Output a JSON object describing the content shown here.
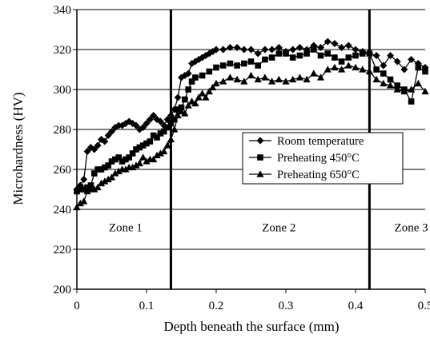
{
  "chart_data": {
    "type": "line",
    "xlabel": "Depth beneath the surface (mm)",
    "ylabel": "Microhardness (HV)",
    "xlim": [
      0,
      0.5
    ],
    "ylim": [
      200,
      340
    ],
    "x_ticks": [
      "0",
      "0.1",
      "0.2",
      "0.3",
      "0.4",
      "0.5"
    ],
    "y_ticks": [
      "200",
      "220",
      "240",
      "260",
      "280",
      "300",
      "320",
      "340"
    ],
    "grid": "horizontal",
    "legend_position": "center-right",
    "zone_boundaries": [
      0.135,
      0.42
    ],
    "zones": [
      {
        "label": "Zone 1",
        "x": 0.07,
        "y": 231
      },
      {
        "label": "Zone 2",
        "x": 0.29,
        "y": 231
      },
      {
        "label": "Zone 3",
        "x": 0.48,
        "y": 231
      }
    ],
    "series": [
      {
        "name": "Room temperature",
        "marker": "diamond",
        "points": [
          [
            0.0,
            250
          ],
          [
            0.005,
            252
          ],
          [
            0.01,
            255
          ],
          [
            0.015,
            269
          ],
          [
            0.02,
            271
          ],
          [
            0.025,
            270
          ],
          [
            0.03,
            272
          ],
          [
            0.035,
            275
          ],
          [
            0.04,
            274
          ],
          [
            0.045,
            277
          ],
          [
            0.05,
            279
          ],
          [
            0.055,
            281
          ],
          [
            0.06,
            282
          ],
          [
            0.065,
            282
          ],
          [
            0.07,
            283
          ],
          [
            0.075,
            284
          ],
          [
            0.08,
            283
          ],
          [
            0.085,
            282
          ],
          [
            0.09,
            280
          ],
          [
            0.095,
            281
          ],
          [
            0.1,
            283
          ],
          [
            0.105,
            285
          ],
          [
            0.11,
            287
          ],
          [
            0.115,
            285
          ],
          [
            0.12,
            284
          ],
          [
            0.125,
            282
          ],
          [
            0.13,
            285
          ],
          [
            0.135,
            287
          ],
          [
            0.14,
            290
          ],
          [
            0.145,
            296
          ],
          [
            0.15,
            306
          ],
          [
            0.155,
            307
          ],
          [
            0.16,
            308
          ],
          [
            0.165,
            313
          ],
          [
            0.17,
            314
          ],
          [
            0.175,
            315
          ],
          [
            0.18,
            316
          ],
          [
            0.185,
            317
          ],
          [
            0.19,
            318
          ],
          [
            0.195,
            319
          ],
          [
            0.2,
            320
          ],
          [
            0.21,
            320
          ],
          [
            0.22,
            321
          ],
          [
            0.23,
            321
          ],
          [
            0.24,
            320
          ],
          [
            0.25,
            320
          ],
          [
            0.26,
            318
          ],
          [
            0.27,
            320
          ],
          [
            0.28,
            320
          ],
          [
            0.29,
            321
          ],
          [
            0.3,
            319
          ],
          [
            0.31,
            320
          ],
          [
            0.32,
            321
          ],
          [
            0.33,
            320
          ],
          [
            0.34,
            322
          ],
          [
            0.35,
            321
          ],
          [
            0.36,
            324
          ],
          [
            0.37,
            323
          ],
          [
            0.38,
            321
          ],
          [
            0.39,
            322
          ],
          [
            0.4,
            320
          ],
          [
            0.41,
            319
          ],
          [
            0.42,
            318
          ],
          [
            0.43,
            317
          ],
          [
            0.44,
            312
          ],
          [
            0.45,
            317
          ],
          [
            0.46,
            314
          ],
          [
            0.47,
            310
          ],
          [
            0.48,
            315
          ],
          [
            0.49,
            313
          ],
          [
            0.5,
            311
          ]
        ]
      },
      {
        "name": "Preheating 450°C",
        "marker": "square",
        "points": [
          [
            0.0,
            249
          ],
          [
            0.005,
            250
          ],
          [
            0.01,
            250
          ],
          [
            0.015,
            251
          ],
          [
            0.02,
            252
          ],
          [
            0.025,
            258
          ],
          [
            0.03,
            260
          ],
          [
            0.035,
            260
          ],
          [
            0.04,
            261
          ],
          [
            0.045,
            262
          ],
          [
            0.05,
            264
          ],
          [
            0.055,
            265
          ],
          [
            0.06,
            266
          ],
          [
            0.065,
            264
          ],
          [
            0.07,
            265
          ],
          [
            0.075,
            266
          ],
          [
            0.08,
            268
          ],
          [
            0.085,
            270
          ],
          [
            0.09,
            271
          ],
          [
            0.095,
            272
          ],
          [
            0.1,
            273
          ],
          [
            0.105,
            274
          ],
          [
            0.11,
            277
          ],
          [
            0.115,
            276
          ],
          [
            0.12,
            278
          ],
          [
            0.125,
            279
          ],
          [
            0.13,
            281
          ],
          [
            0.135,
            283
          ],
          [
            0.14,
            285
          ],
          [
            0.145,
            290
          ],
          [
            0.15,
            291
          ],
          [
            0.155,
            295
          ],
          [
            0.16,
            300
          ],
          [
            0.165,
            304
          ],
          [
            0.17,
            306
          ],
          [
            0.18,
            307
          ],
          [
            0.19,
            309
          ],
          [
            0.2,
            311
          ],
          [
            0.21,
            312
          ],
          [
            0.22,
            313
          ],
          [
            0.23,
            312
          ],
          [
            0.24,
            313
          ],
          [
            0.25,
            314
          ],
          [
            0.26,
            312
          ],
          [
            0.27,
            315
          ],
          [
            0.28,
            316
          ],
          [
            0.29,
            318
          ],
          [
            0.3,
            318
          ],
          [
            0.31,
            316
          ],
          [
            0.32,
            317
          ],
          [
            0.33,
            318
          ],
          [
            0.34,
            320
          ],
          [
            0.35,
            317
          ],
          [
            0.36,
            318
          ],
          [
            0.37,
            316
          ],
          [
            0.38,
            314
          ],
          [
            0.39,
            316
          ],
          [
            0.4,
            317
          ],
          [
            0.41,
            318
          ],
          [
            0.42,
            318
          ],
          [
            0.43,
            310
          ],
          [
            0.44,
            308
          ],
          [
            0.45,
            305
          ],
          [
            0.46,
            302
          ],
          [
            0.47,
            300
          ],
          [
            0.48,
            294
          ],
          [
            0.49,
            311
          ],
          [
            0.5,
            309
          ]
        ]
      },
      {
        "name": "Preheating 650°C",
        "marker": "triangle",
        "points": [
          [
            0.0,
            241
          ],
          [
            0.005,
            243
          ],
          [
            0.01,
            244
          ],
          [
            0.015,
            249
          ],
          [
            0.02,
            250
          ],
          [
            0.025,
            250
          ],
          [
            0.03,
            251
          ],
          [
            0.035,
            253
          ],
          [
            0.04,
            254
          ],
          [
            0.045,
            255
          ],
          [
            0.05,
            256
          ],
          [
            0.055,
            258
          ],
          [
            0.06,
            259
          ],
          [
            0.065,
            260
          ],
          [
            0.07,
            260
          ],
          [
            0.075,
            261
          ],
          [
            0.08,
            261
          ],
          [
            0.085,
            262
          ],
          [
            0.09,
            263
          ],
          [
            0.095,
            266
          ],
          [
            0.1,
            264
          ],
          [
            0.105,
            265
          ],
          [
            0.11,
            265
          ],
          [
            0.115,
            267
          ],
          [
            0.12,
            268
          ],
          [
            0.125,
            269
          ],
          [
            0.13,
            272
          ],
          [
            0.135,
            275
          ],
          [
            0.14,
            280
          ],
          [
            0.145,
            287
          ],
          [
            0.15,
            289
          ],
          [
            0.155,
            288
          ],
          [
            0.16,
            292
          ],
          [
            0.165,
            294
          ],
          [
            0.17,
            293
          ],
          [
            0.175,
            296
          ],
          [
            0.18,
            298
          ],
          [
            0.185,
            296
          ],
          [
            0.19,
            299
          ],
          [
            0.195,
            301
          ],
          [
            0.2,
            303
          ],
          [
            0.21,
            304
          ],
          [
            0.22,
            306
          ],
          [
            0.23,
            305
          ],
          [
            0.24,
            304
          ],
          [
            0.25,
            307
          ],
          [
            0.26,
            305
          ],
          [
            0.27,
            306
          ],
          [
            0.28,
            304
          ],
          [
            0.29,
            305
          ],
          [
            0.3,
            304
          ],
          [
            0.31,
            305
          ],
          [
            0.32,
            306
          ],
          [
            0.33,
            305
          ],
          [
            0.34,
            308
          ],
          [
            0.35,
            306
          ],
          [
            0.36,
            310
          ],
          [
            0.37,
            311
          ],
          [
            0.38,
            310
          ],
          [
            0.39,
            312
          ],
          [
            0.4,
            311
          ],
          [
            0.41,
            310
          ],
          [
            0.42,
            309
          ],
          [
            0.43,
            305
          ],
          [
            0.44,
            303
          ],
          [
            0.45,
            302
          ],
          [
            0.46,
            300
          ],
          [
            0.47,
            299
          ],
          [
            0.48,
            300
          ],
          [
            0.49,
            303
          ],
          [
            0.5,
            299
          ]
        ]
      }
    ]
  }
}
